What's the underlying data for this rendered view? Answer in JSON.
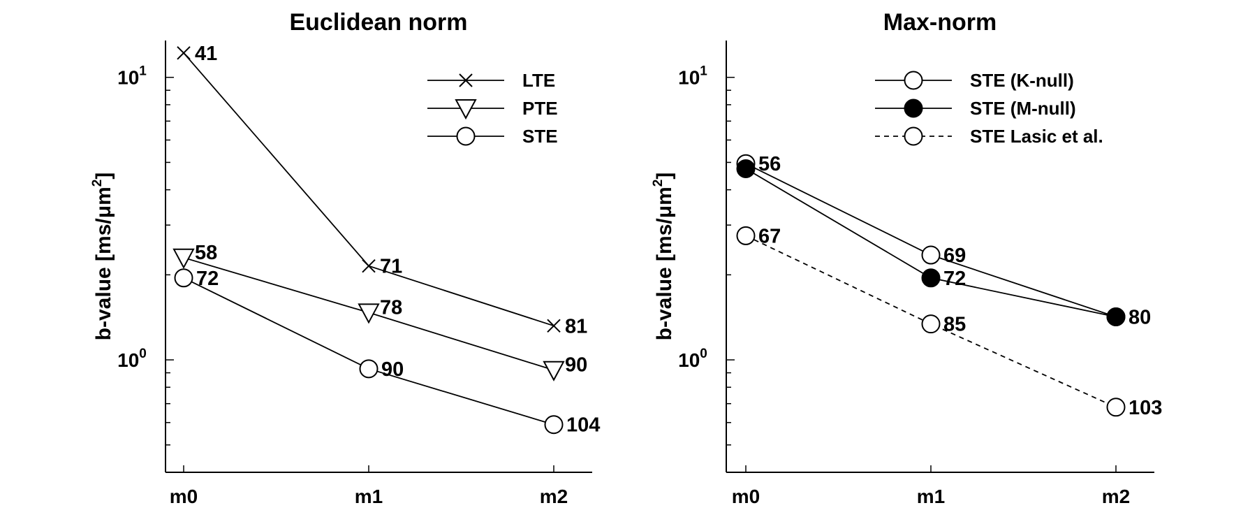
{
  "chart_data": [
    {
      "type": "line",
      "title": "Euclidean norm",
      "ylabel": "b-value [ms/μm",
      "ylabel_sup": "2",
      "ylabel_tail": "]",
      "yscale": "log",
      "ylim": [
        0.4,
        13.5
      ],
      "yticks": [
        {
          "base": "10",
          "exp": "0",
          "value": 1
        },
        {
          "base": "10",
          "exp": "1",
          "value": 10
        }
      ],
      "categories": [
        "m0",
        "m1",
        "m2"
      ],
      "grid": false,
      "legend_position": "top-right",
      "series": [
        {
          "name": "LTE",
          "marker": "x",
          "dashed": false,
          "values": [
            12.2,
            2.15,
            1.32
          ],
          "labels": [
            "41",
            "71",
            "81"
          ]
        },
        {
          "name": "PTE",
          "marker": "triangle-down",
          "dashed": false,
          "values": [
            2.3,
            1.47,
            0.92
          ],
          "labels": [
            "58",
            "78",
            "90"
          ]
        },
        {
          "name": "STE",
          "marker": "circle-open",
          "dashed": false,
          "values": [
            1.95,
            0.93,
            0.59
          ],
          "labels": [
            "72",
            "90",
            "104"
          ]
        }
      ]
    },
    {
      "type": "line",
      "title": "Max-norm",
      "ylabel": "b-value [ms/μm",
      "ylabel_sup": "2",
      "ylabel_tail": "]",
      "yscale": "log",
      "ylim": [
        0.4,
        13.5
      ],
      "yticks": [
        {
          "base": "10",
          "exp": "0",
          "value": 1
        },
        {
          "base": "10",
          "exp": "1",
          "value": 10
        }
      ],
      "categories": [
        "m0",
        "m1",
        "m2"
      ],
      "grid": false,
      "legend_position": "top-right",
      "series": [
        {
          "name": "STE (K-null)",
          "marker": "circle-open",
          "dashed": false,
          "values": [
            4.95,
            2.35,
            1.42
          ],
          "labels": [
            "56",
            "69",
            "80"
          ]
        },
        {
          "name": "STE (M-null)",
          "marker": "circle-filled",
          "dashed": false,
          "values": [
            4.75,
            1.95,
            1.42
          ],
          "labels": [
            "",
            "72",
            ""
          ]
        },
        {
          "name": "STE Lasic et al.",
          "marker": "circle-open",
          "dashed": true,
          "values": [
            2.75,
            1.34,
            0.68
          ],
          "labels": [
            "67",
            "85",
            "103"
          ]
        }
      ]
    }
  ]
}
